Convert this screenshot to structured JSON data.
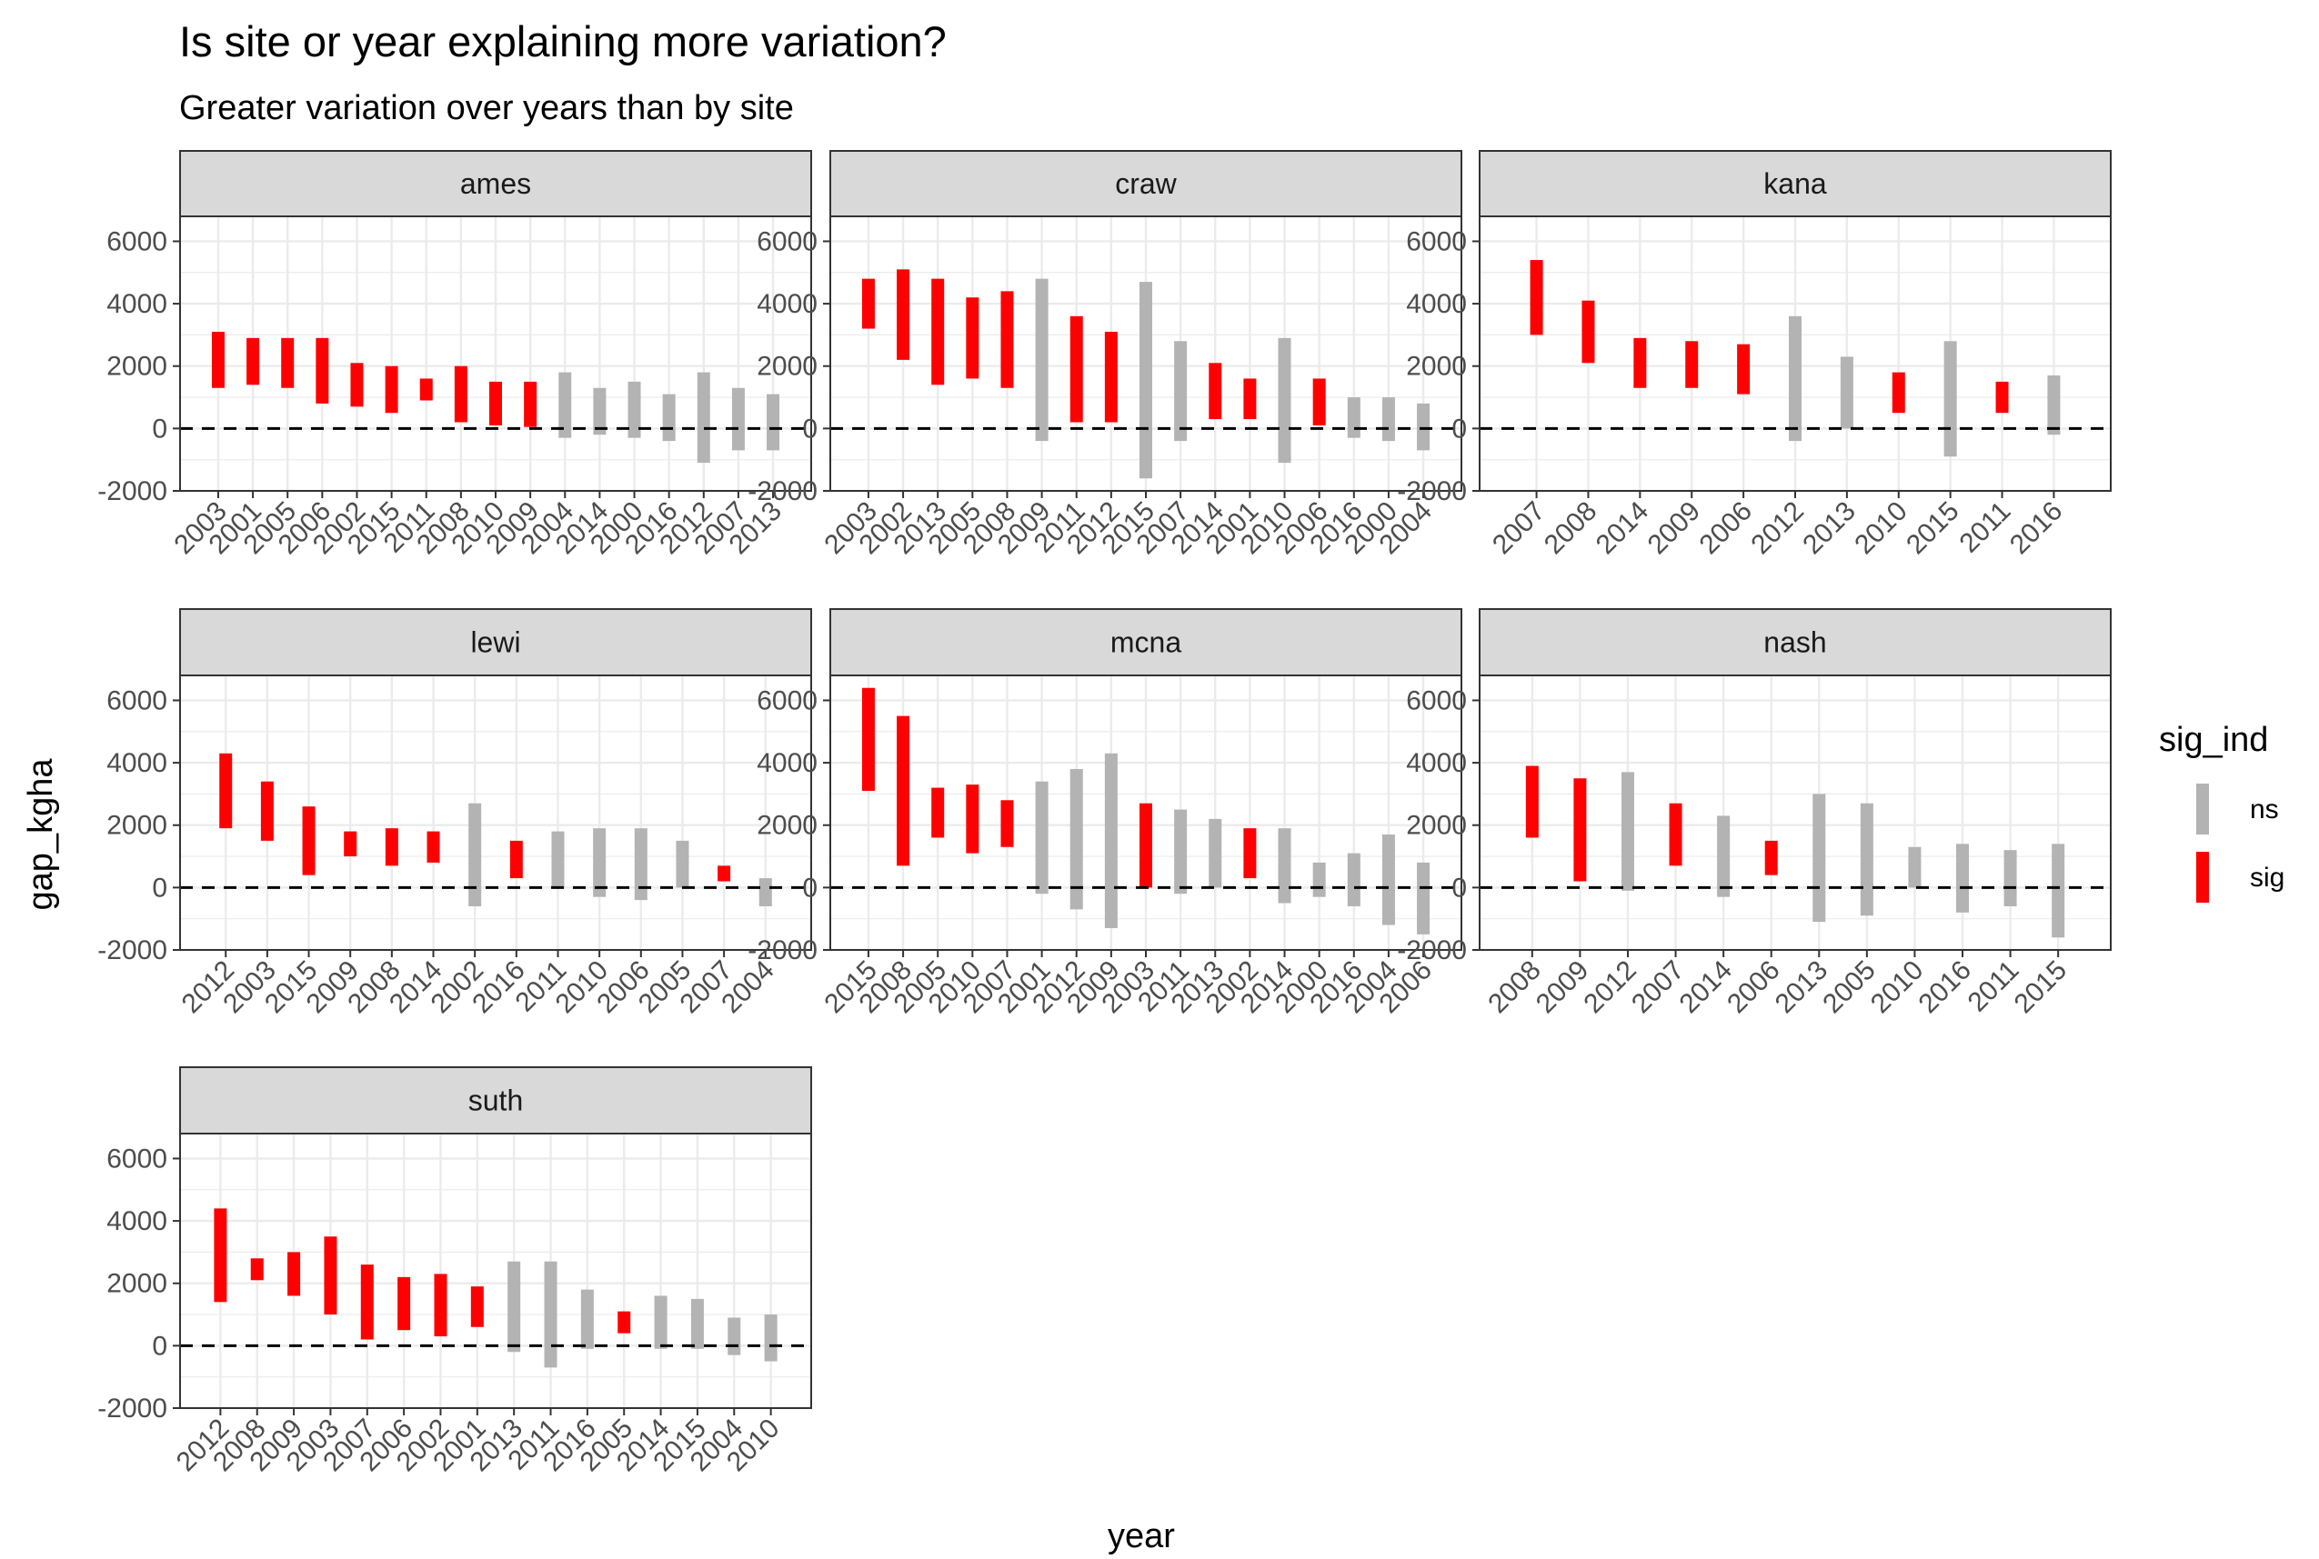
{
  "chart_data": {
    "type": "range-bar",
    "title": "Is site or year explaining more variation?",
    "subtitle": "Greater variation over years than by site",
    "xlabel": "year",
    "ylabel": "gap_kgha",
    "ylim": [
      -2000,
      6800
    ],
    "y_ticks": [
      -2000,
      0,
      2000,
      4000,
      6000
    ],
    "y_tick_labels": [
      "-2000",
      "0",
      "2000",
      "4000",
      "6000"
    ],
    "reference_line": 0,
    "legend": {
      "title": "sig_ind",
      "position": "right",
      "entries": [
        {
          "key": "ns",
          "label": "ns",
          "color": "#B3B3B3"
        },
        {
          "key": "sig",
          "label": "sig",
          "color": "#FF0000"
        }
      ]
    },
    "colors": {
      "ns": "#B3B3B3",
      "sig": "#FF0000",
      "strip_fill": "#D9D9D9",
      "grid": "#EBEBEB"
    },
    "panels": [
      {
        "site": "ames",
        "bars": [
          {
            "year": "2003",
            "low": 1300,
            "high": 3100,
            "sig": "sig"
          },
          {
            "year": "2001",
            "low": 1400,
            "high": 2900,
            "sig": "sig"
          },
          {
            "year": "2005",
            "low": 1300,
            "high": 2900,
            "sig": "sig"
          },
          {
            "year": "2006",
            "low": 800,
            "high": 2900,
            "sig": "sig"
          },
          {
            "year": "2002",
            "low": 700,
            "high": 2100,
            "sig": "sig"
          },
          {
            "year": "2015",
            "low": 500,
            "high": 2000,
            "sig": "sig"
          },
          {
            "year": "2011",
            "low": 900,
            "high": 1600,
            "sig": "sig"
          },
          {
            "year": "2008",
            "low": 200,
            "high": 2000,
            "sig": "sig"
          },
          {
            "year": "2010",
            "low": 100,
            "high": 1500,
            "sig": "sig"
          },
          {
            "year": "2009",
            "low": 50,
            "high": 1500,
            "sig": "sig"
          },
          {
            "year": "2004",
            "low": -300,
            "high": 1800,
            "sig": "ns"
          },
          {
            "year": "2014",
            "low": -200,
            "high": 1300,
            "sig": "ns"
          },
          {
            "year": "2000",
            "low": -300,
            "high": 1500,
            "sig": "ns"
          },
          {
            "year": "2016",
            "low": -400,
            "high": 1100,
            "sig": "ns"
          },
          {
            "year": "2012",
            "low": -1100,
            "high": 1800,
            "sig": "ns"
          },
          {
            "year": "2007",
            "low": -700,
            "high": 1300,
            "sig": "ns"
          },
          {
            "year": "2013",
            "low": -700,
            "high": 1100,
            "sig": "ns"
          }
        ]
      },
      {
        "site": "craw",
        "bars": [
          {
            "year": "2003",
            "low": 3200,
            "high": 4800,
            "sig": "sig"
          },
          {
            "year": "2002",
            "low": 2200,
            "high": 5100,
            "sig": "sig"
          },
          {
            "year": "2013",
            "low": 1400,
            "high": 4800,
            "sig": "sig"
          },
          {
            "year": "2005",
            "low": 1600,
            "high": 4200,
            "sig": "sig"
          },
          {
            "year": "2008",
            "low": 1300,
            "high": 4400,
            "sig": "sig"
          },
          {
            "year": "2009",
            "low": -400,
            "high": 4800,
            "sig": "ns"
          },
          {
            "year": "2011",
            "low": 200,
            "high": 3600,
            "sig": "sig"
          },
          {
            "year": "2012",
            "low": 200,
            "high": 3100,
            "sig": "sig"
          },
          {
            "year": "2015",
            "low": -1600,
            "high": 4700,
            "sig": "ns"
          },
          {
            "year": "2007",
            "low": -400,
            "high": 2800,
            "sig": "ns"
          },
          {
            "year": "2014",
            "low": 300,
            "high": 2100,
            "sig": "sig"
          },
          {
            "year": "2001",
            "low": 300,
            "high": 1600,
            "sig": "sig"
          },
          {
            "year": "2010",
            "low": -1100,
            "high": 2900,
            "sig": "ns"
          },
          {
            "year": "2006",
            "low": 100,
            "high": 1600,
            "sig": "sig"
          },
          {
            "year": "2016",
            "low": -300,
            "high": 1000,
            "sig": "ns"
          },
          {
            "year": "2000",
            "low": -400,
            "high": 1000,
            "sig": "ns"
          },
          {
            "year": "2004",
            "low": -700,
            "high": 800,
            "sig": "ns"
          }
        ]
      },
      {
        "site": "kana",
        "bars": [
          {
            "year": "2007",
            "low": 3000,
            "high": 5400,
            "sig": "sig"
          },
          {
            "year": "2008",
            "low": 2100,
            "high": 4100,
            "sig": "sig"
          },
          {
            "year": "2014",
            "low": 1300,
            "high": 2900,
            "sig": "sig"
          },
          {
            "year": "2009",
            "low": 1300,
            "high": 2800,
            "sig": "sig"
          },
          {
            "year": "2006",
            "low": 1100,
            "high": 2700,
            "sig": "sig"
          },
          {
            "year": "2012",
            "low": -400,
            "high": 3600,
            "sig": "ns"
          },
          {
            "year": "2013",
            "low": 0,
            "high": 2300,
            "sig": "ns"
          },
          {
            "year": "2010",
            "low": 500,
            "high": 1800,
            "sig": "sig"
          },
          {
            "year": "2015",
            "low": -900,
            "high": 2800,
            "sig": "ns"
          },
          {
            "year": "2011",
            "low": 500,
            "high": 1500,
            "sig": "sig"
          },
          {
            "year": "2016",
            "low": -200,
            "high": 1700,
            "sig": "ns"
          }
        ]
      },
      {
        "site": "lewi",
        "bars": [
          {
            "year": "2012",
            "low": 1900,
            "high": 4300,
            "sig": "sig"
          },
          {
            "year": "2003",
            "low": 1500,
            "high": 3400,
            "sig": "sig"
          },
          {
            "year": "2015",
            "low": 400,
            "high": 2600,
            "sig": "sig"
          },
          {
            "year": "2009",
            "low": 1000,
            "high": 1800,
            "sig": "sig"
          },
          {
            "year": "2008",
            "low": 700,
            "high": 1900,
            "sig": "sig"
          },
          {
            "year": "2014",
            "low": 800,
            "high": 1800,
            "sig": "sig"
          },
          {
            "year": "2002",
            "low": -600,
            "high": 2700,
            "sig": "ns"
          },
          {
            "year": "2016",
            "low": 300,
            "high": 1500,
            "sig": "sig"
          },
          {
            "year": "2011",
            "low": 0,
            "high": 1800,
            "sig": "ns"
          },
          {
            "year": "2010",
            "low": -300,
            "high": 1900,
            "sig": "ns"
          },
          {
            "year": "2006",
            "low": -400,
            "high": 1900,
            "sig": "ns"
          },
          {
            "year": "2005",
            "low": 0,
            "high": 1500,
            "sig": "ns"
          },
          {
            "year": "2007",
            "low": 200,
            "high": 700,
            "sig": "sig"
          },
          {
            "year": "2004",
            "low": -600,
            "high": 300,
            "sig": "ns"
          }
        ]
      },
      {
        "site": "mcna",
        "bars": [
          {
            "year": "2015",
            "low": 3100,
            "high": 6400,
            "sig": "sig"
          },
          {
            "year": "2008",
            "low": 700,
            "high": 5500,
            "sig": "sig"
          },
          {
            "year": "2005",
            "low": 1600,
            "high": 3200,
            "sig": "sig"
          },
          {
            "year": "2010",
            "low": 1100,
            "high": 3300,
            "sig": "sig"
          },
          {
            "year": "2007",
            "low": 1300,
            "high": 2800,
            "sig": "sig"
          },
          {
            "year": "2001",
            "low": -200,
            "high": 3400,
            "sig": "ns"
          },
          {
            "year": "2012",
            "low": -700,
            "high": 3800,
            "sig": "ns"
          },
          {
            "year": "2009",
            "low": -1300,
            "high": 4300,
            "sig": "ns"
          },
          {
            "year": "2003",
            "low": 0,
            "high": 2700,
            "sig": "sig"
          },
          {
            "year": "2011",
            "low": -200,
            "high": 2500,
            "sig": "ns"
          },
          {
            "year": "2013",
            "low": 0,
            "high": 2200,
            "sig": "ns"
          },
          {
            "year": "2002",
            "low": 300,
            "high": 1900,
            "sig": "sig"
          },
          {
            "year": "2014",
            "low": -500,
            "high": 1900,
            "sig": "ns"
          },
          {
            "year": "2000",
            "low": -300,
            "high": 800,
            "sig": "ns"
          },
          {
            "year": "2016",
            "low": -600,
            "high": 1100,
            "sig": "ns"
          },
          {
            "year": "2004",
            "low": -1200,
            "high": 1700,
            "sig": "ns"
          },
          {
            "year": "2006",
            "low": -1500,
            "high": 800,
            "sig": "ns"
          }
        ]
      },
      {
        "site": "nash",
        "bars": [
          {
            "year": "2008",
            "low": 1600,
            "high": 3900,
            "sig": "sig"
          },
          {
            "year": "2009",
            "low": 200,
            "high": 3500,
            "sig": "sig"
          },
          {
            "year": "2012",
            "low": -100,
            "high": 3700,
            "sig": "ns"
          },
          {
            "year": "2007",
            "low": 700,
            "high": 2700,
            "sig": "sig"
          },
          {
            "year": "2014",
            "low": -300,
            "high": 2300,
            "sig": "ns"
          },
          {
            "year": "2006",
            "low": 400,
            "high": 1500,
            "sig": "sig"
          },
          {
            "year": "2013",
            "low": -1100,
            "high": 3000,
            "sig": "ns"
          },
          {
            "year": "2005",
            "low": -900,
            "high": 2700,
            "sig": "ns"
          },
          {
            "year": "2010",
            "low": 0,
            "high": 1300,
            "sig": "ns"
          },
          {
            "year": "2016",
            "low": -800,
            "high": 1400,
            "sig": "ns"
          },
          {
            "year": "2011",
            "low": -600,
            "high": 1200,
            "sig": "ns"
          },
          {
            "year": "2015",
            "low": -1600,
            "high": 1400,
            "sig": "ns"
          }
        ]
      },
      {
        "site": "suth",
        "bars": [
          {
            "year": "2012",
            "low": 1400,
            "high": 4400,
            "sig": "sig"
          },
          {
            "year": "2008",
            "low": 2100,
            "high": 2800,
            "sig": "sig"
          },
          {
            "year": "2009",
            "low": 1600,
            "high": 3000,
            "sig": "sig"
          },
          {
            "year": "2003",
            "low": 1000,
            "high": 3500,
            "sig": "sig"
          },
          {
            "year": "2007",
            "low": 200,
            "high": 2600,
            "sig": "sig"
          },
          {
            "year": "2006",
            "low": 500,
            "high": 2200,
            "sig": "sig"
          },
          {
            "year": "2002",
            "low": 300,
            "high": 2300,
            "sig": "sig"
          },
          {
            "year": "2001",
            "low": 600,
            "high": 1900,
            "sig": "sig"
          },
          {
            "year": "2013",
            "low": -200,
            "high": 2700,
            "sig": "ns"
          },
          {
            "year": "2011",
            "low": -700,
            "high": 2700,
            "sig": "ns"
          },
          {
            "year": "2016",
            "low": -100,
            "high": 1800,
            "sig": "ns"
          },
          {
            "year": "2005",
            "low": 400,
            "high": 1100,
            "sig": "sig"
          },
          {
            "year": "2014",
            "low": -100,
            "high": 1600,
            "sig": "ns"
          },
          {
            "year": "2015",
            "low": -100,
            "high": 1500,
            "sig": "ns"
          },
          {
            "year": "2004",
            "low": -300,
            "high": 900,
            "sig": "ns"
          },
          {
            "year": "2010",
            "low": -500,
            "high": 1000,
            "sig": "ns"
          }
        ]
      }
    ]
  }
}
